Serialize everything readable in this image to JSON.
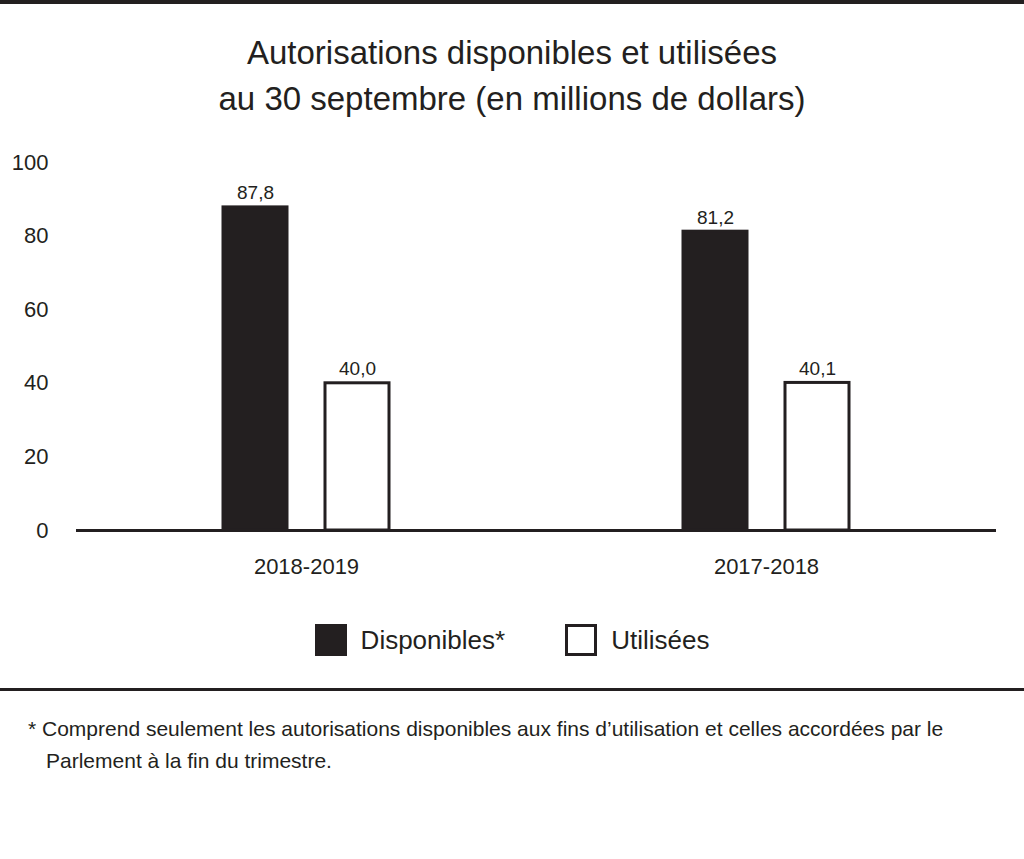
{
  "chart_data": {
    "type": "bar",
    "title": "Autorisations disponibles et utilisées",
    "subtitle": "au 30 septembre (en millions de dollars)",
    "categories": [
      "2018-2019",
      "2017-2018"
    ],
    "series": [
      {
        "name": "Disponibles*",
        "color": "#231f20",
        "values": [
          87.8,
          81.2
        ],
        "value_labels": [
          "87,8",
          "81,2"
        ]
      },
      {
        "name": "Utilisées",
        "color": "#ffffff",
        "values": [
          40.0,
          40.1
        ],
        "value_labels": [
          "40,0",
          "40,1"
        ]
      }
    ],
    "ylim": [
      0,
      100
    ],
    "yticks": [
      0,
      20,
      40,
      60,
      80,
      100
    ],
    "grid": false,
    "data_labels": true,
    "legend": "bottom",
    "caption": "* Comprend seulement les autorisations disponibles aux fins d’utilisation et celles accordées par le Parlement à la fin du trimestre."
  }
}
